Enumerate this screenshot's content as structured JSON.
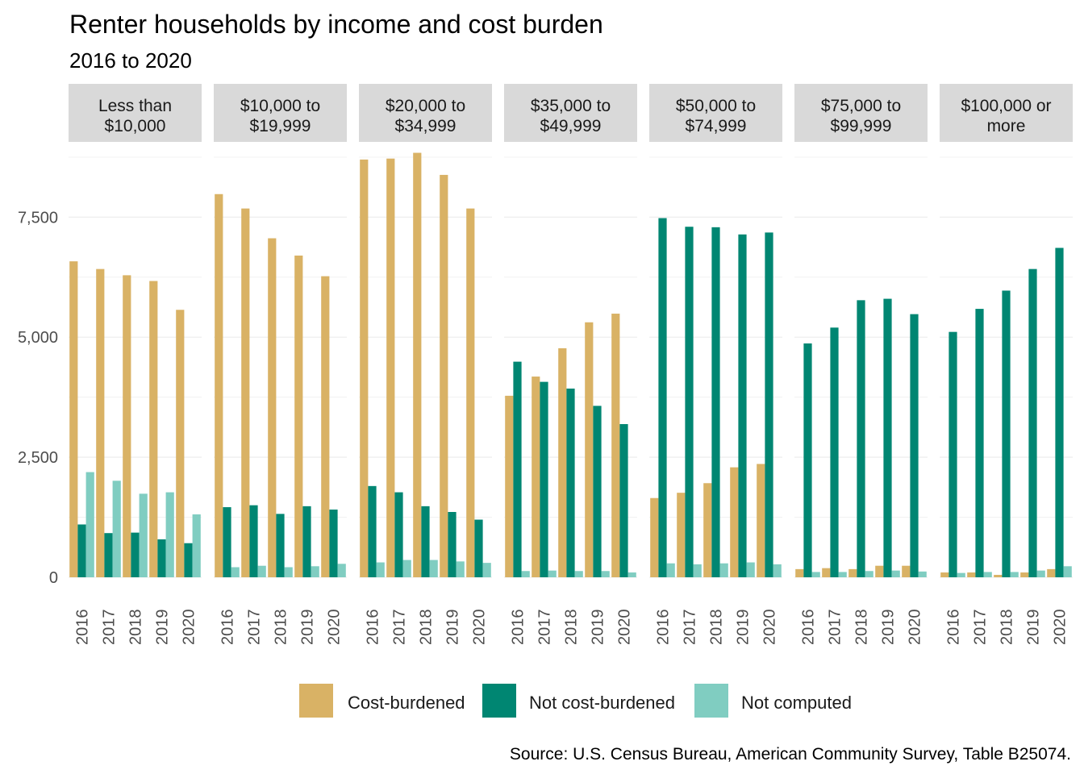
{
  "chart_data": {
    "type": "bar",
    "title": "Renter households by income and cost burden",
    "subtitle": "2016 to 2020",
    "caption": "Source: U.S. Census Bureau, American Community Survey, Table B25074.",
    "xlabel": "",
    "ylabel": "",
    "ylim": [
      0,
      9000
    ],
    "y_ticks": [
      0,
      2500,
      5000,
      7500
    ],
    "y_tick_labels": [
      "0",
      "2,500",
      "5,000",
      "7,500"
    ],
    "x_categories": [
      "2016",
      "2017",
      "2018",
      "2019",
      "2020"
    ],
    "legend_position": "bottom",
    "grid": true,
    "series": [
      {
        "name": "Cost-burdened",
        "color": "#D9B265"
      },
      {
        "name": "Not cost-burdened",
        "color": "#008672"
      },
      {
        "name": "Not computed",
        "color": "#80CDC1"
      }
    ],
    "panels": [
      {
        "label_lines": [
          "Less than",
          "$10,000"
        ],
        "values": {
          "Cost-burdened": [
            6580,
            6420,
            6290,
            6170,
            5570
          ],
          "Not cost-burdened": [
            1100,
            920,
            930,
            790,
            710
          ],
          "Not computed": [
            2190,
            2010,
            1740,
            1770,
            1310
          ]
        }
      },
      {
        "label_lines": [
          "$10,000 to",
          "$19,999"
        ],
        "values": {
          "Cost-burdened": [
            7980,
            7680,
            7060,
            6700,
            6270
          ],
          "Not cost-burdened": [
            1460,
            1500,
            1320,
            1480,
            1410
          ],
          "Not computed": [
            210,
            240,
            210,
            230,
            280
          ]
        }
      },
      {
        "label_lines": [
          "$20,000 to",
          "$34,999"
        ],
        "values": {
          "Cost-burdened": [
            8700,
            8720,
            8840,
            8380,
            7680
          ],
          "Not cost-burdened": [
            1900,
            1770,
            1480,
            1360,
            1200
          ],
          "Not computed": [
            310,
            360,
            360,
            330,
            300
          ]
        }
      },
      {
        "label_lines": [
          "$35,000 to",
          "$49,999"
        ],
        "values": {
          "Cost-burdened": [
            3780,
            4180,
            4770,
            5310,
            5490
          ],
          "Not cost-burdened": [
            4490,
            4070,
            3930,
            3570,
            3190
          ],
          "Not computed": [
            130,
            140,
            130,
            130,
            100
          ]
        }
      },
      {
        "label_lines": [
          "$50,000 to",
          "$74,999"
        ],
        "values": {
          "Cost-burdened": [
            1650,
            1760,
            1960,
            2290,
            2360
          ],
          "Not cost-burdened": [
            7480,
            7300,
            7290,
            7140,
            7180
          ],
          "Not computed": [
            290,
            270,
            290,
            310,
            270
          ]
        }
      },
      {
        "label_lines": [
          "$75,000 to",
          "$99,999"
        ],
        "values": {
          "Cost-burdened": [
            170,
            190,
            170,
            240,
            240
          ],
          "Not cost-burdened": [
            4870,
            5200,
            5770,
            5800,
            5480
          ],
          "Not computed": [
            110,
            110,
            130,
            140,
            120
          ]
        }
      },
      {
        "label_lines": [
          "$100,000 or",
          "more"
        ],
        "values": {
          "Cost-burdened": [
            100,
            100,
            50,
            100,
            170
          ],
          "Not cost-burdened": [
            5110,
            5590,
            5970,
            6420,
            6860
          ],
          "Not computed": [
            90,
            110,
            110,
            140,
            230
          ]
        }
      }
    ]
  }
}
